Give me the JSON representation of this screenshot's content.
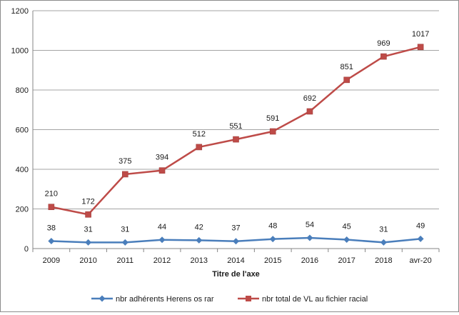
{
  "chart_data": {
    "type": "line",
    "categories": [
      "2009",
      "2010",
      "2011",
      "2012",
      "2013",
      "2014",
      "2015",
      "2016",
      "2017",
      "2018",
      "avr-20"
    ],
    "series": [
      {
        "name": "nbr adhérents Herens os rar",
        "values": [
          38,
          31,
          31,
          44,
          42,
          37,
          48,
          54,
          45,
          31,
          49
        ],
        "color": "#4a7ebb",
        "marker": "diamond"
      },
      {
        "name": "nbr total de VL au fichier racial",
        "values": [
          210,
          172,
          375,
          394,
          512,
          551,
          591,
          692,
          851,
          969,
          1017
        ],
        "color": "#be4b48",
        "marker": "square"
      }
    ],
    "xlabel": "Titre de l'axe",
    "ylabel": "",
    "ylim": [
      0,
      1200
    ],
    "yticks": [
      0,
      200,
      400,
      600,
      800,
      1000,
      1200
    ],
    "grid": true,
    "legend": "bottom"
  }
}
